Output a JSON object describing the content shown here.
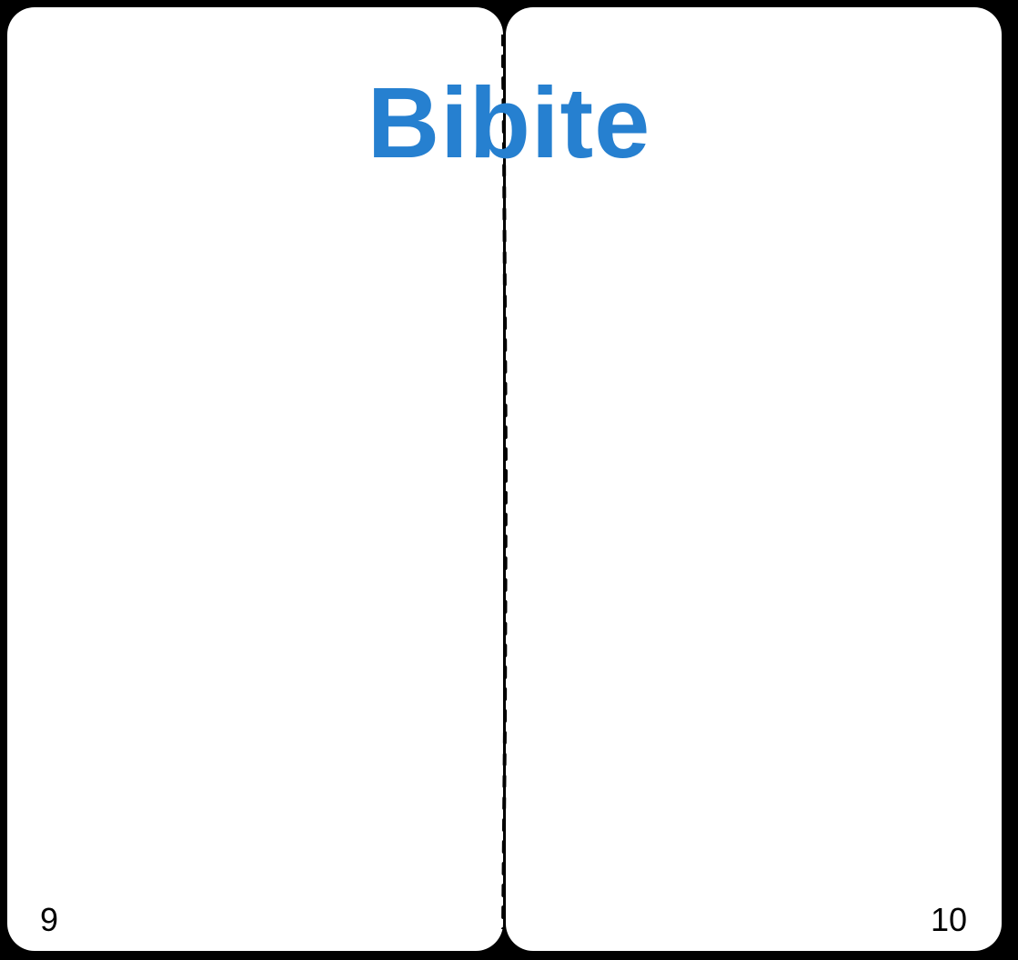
{
  "booklet": {
    "title": "Bibite",
    "title_color": "#2680d0",
    "left_page": {
      "number": "9"
    },
    "right_page": {
      "number": "10"
    }
  }
}
